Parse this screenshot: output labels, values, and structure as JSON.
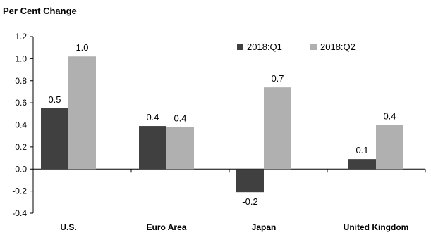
{
  "chart_data": {
    "type": "bar",
    "title": "Per Cent Change",
    "categories": [
      "U.S.",
      "Euro Area",
      "Japan",
      "United Kingdom"
    ],
    "series": [
      {
        "name": "2018:Q1",
        "values": [
          0.5,
          0.4,
          -0.2,
          0.1
        ],
        "labels": [
          "0.5",
          "0.4",
          "-0.2",
          "0.1"
        ],
        "color": "#404040"
      },
      {
        "name": "2018:Q2",
        "values": [
          1.0,
          0.4,
          0.7,
          0.4
        ],
        "labels": [
          "1.0",
          "0.4",
          "0.7",
          "0.4"
        ],
        "color": "#b0b0b0"
      }
    ],
    "plot_values": [
      [
        0.55,
        0.39,
        -0.21,
        0.09
      ],
      [
        1.02,
        0.38,
        0.74,
        0.4
      ]
    ],
    "ylim": [
      -0.4,
      1.2
    ],
    "yticks": [
      "-0.4",
      "-0.2",
      "0.0",
      "0.2",
      "0.4",
      "0.6",
      "0.8",
      "1.0",
      "1.2"
    ],
    "legend_position": "top-right",
    "grid": false
  }
}
